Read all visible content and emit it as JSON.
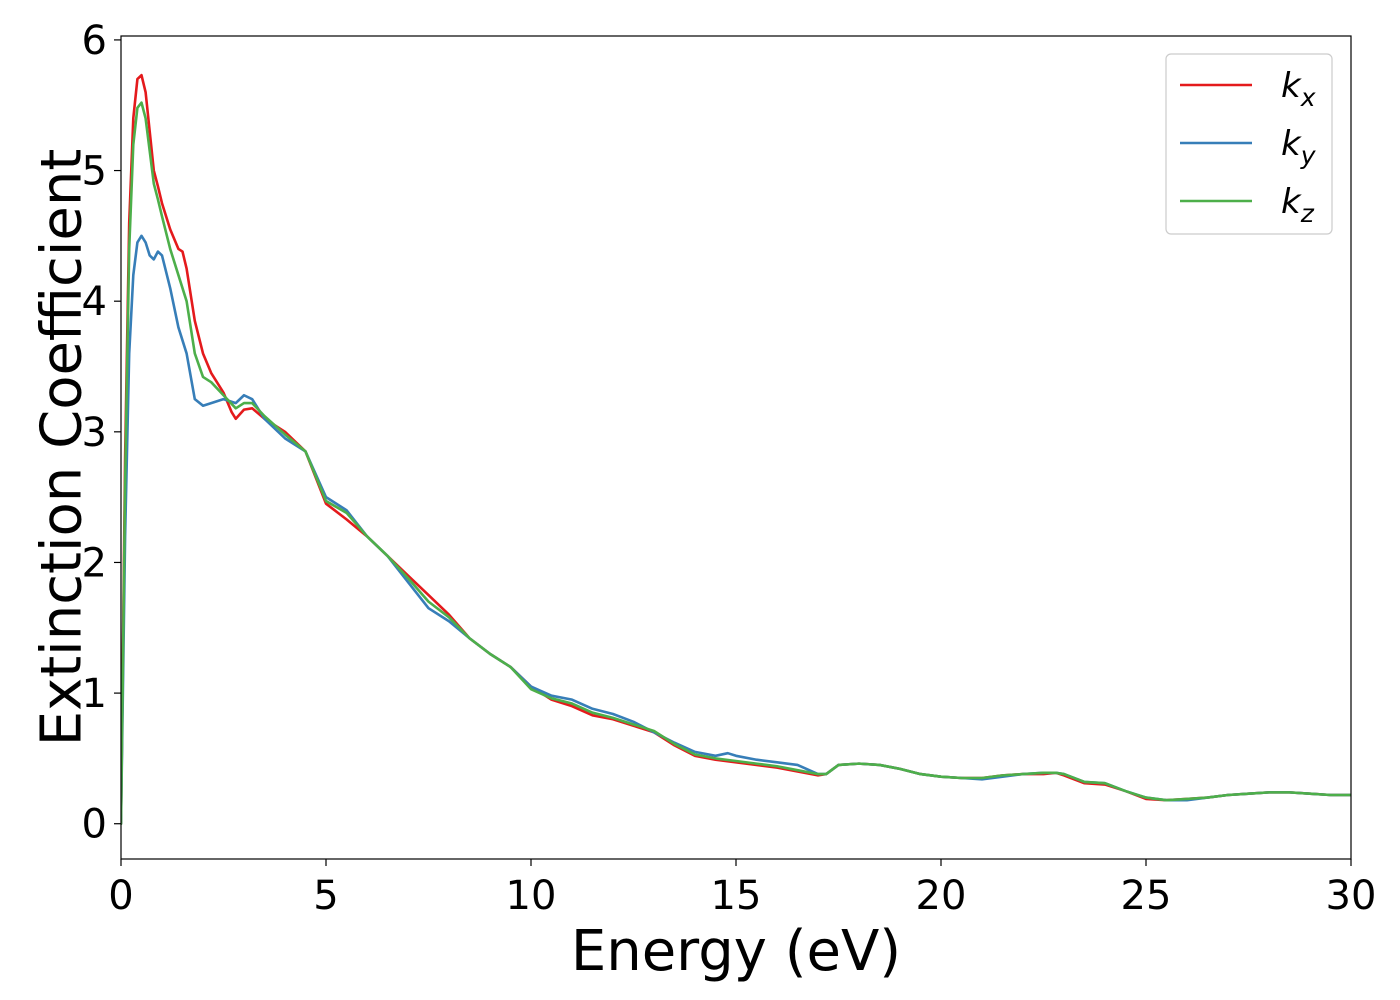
{
  "chart_data": {
    "type": "line",
    "title": "",
    "xlabel": "Energy (eV)",
    "ylabel": "Extinction Coefficient",
    "xlim": [
      0,
      30
    ],
    "ylim": [
      -0.27,
      6.03
    ],
    "xticks": [
      0,
      5,
      10,
      15,
      20,
      25,
      30
    ],
    "yticks": [
      0,
      1,
      2,
      3,
      4,
      5,
      6
    ],
    "grid": false,
    "legend_position": "top-right",
    "series": [
      {
        "name": "k",
        "subscript": "x",
        "color": "#e41a1c",
        "x": [
          0,
          0.1,
          0.2,
          0.3,
          0.4,
          0.5,
          0.6,
          0.7,
          0.8,
          0.9,
          1.0,
          1.2,
          1.4,
          1.5,
          1.6,
          1.8,
          2.0,
          2.2,
          2.5,
          2.7,
          2.8,
          3.0,
          3.2,
          3.5,
          4.0,
          4.5,
          5.0,
          5.5,
          6.0,
          6.5,
          7.0,
          7.5,
          8.0,
          8.5,
          9.0,
          9.5,
          10.0,
          10.5,
          11.0,
          11.5,
          12.0,
          12.5,
          13.0,
          13.5,
          14.0,
          14.5,
          15.0,
          15.5,
          16.0,
          16.5,
          17.0,
          17.2,
          17.5,
          18.0,
          18.5,
          19.0,
          19.5,
          20.0,
          20.5,
          21.0,
          21.5,
          22.0,
          22.5,
          22.8,
          23.0,
          23.5,
          24.0,
          24.5,
          25.0,
          25.5,
          26.0,
          26.5,
          27.0,
          27.5,
          28.0,
          28.5,
          29.0,
          29.5,
          30.0
        ],
        "y": [
          0,
          2.8,
          4.6,
          5.4,
          5.7,
          5.73,
          5.6,
          5.3,
          5.0,
          4.88,
          4.75,
          4.55,
          4.4,
          4.38,
          4.25,
          3.85,
          3.6,
          3.45,
          3.3,
          3.15,
          3.1,
          3.17,
          3.18,
          3.1,
          3.0,
          2.85,
          2.45,
          2.33,
          2.2,
          2.05,
          1.9,
          1.75,
          1.6,
          1.42,
          1.3,
          1.2,
          1.05,
          0.95,
          0.9,
          0.83,
          0.8,
          0.75,
          0.7,
          0.6,
          0.52,
          0.49,
          0.47,
          0.45,
          0.43,
          0.4,
          0.37,
          0.38,
          0.45,
          0.46,
          0.45,
          0.42,
          0.38,
          0.36,
          0.35,
          0.35,
          0.37,
          0.38,
          0.38,
          0.39,
          0.37,
          0.31,
          0.3,
          0.25,
          0.19,
          0.18,
          0.19,
          0.2,
          0.22,
          0.23,
          0.24,
          0.24,
          0.23,
          0.22,
          0.22
        ]
      },
      {
        "name": "k",
        "subscript": "y",
        "color": "#377eb8",
        "x": [
          0,
          0.1,
          0.2,
          0.3,
          0.4,
          0.5,
          0.6,
          0.7,
          0.8,
          0.9,
          1.0,
          1.2,
          1.4,
          1.6,
          1.8,
          2.0,
          2.2,
          2.5,
          2.8,
          3.0,
          3.2,
          3.5,
          4.0,
          4.5,
          5.0,
          5.5,
          6.0,
          6.5,
          7.0,
          7.5,
          8.0,
          8.5,
          9.0,
          9.5,
          10.0,
          10.5,
          11.0,
          11.5,
          12.0,
          12.5,
          13.0,
          13.5,
          14.0,
          14.5,
          14.8,
          15.0,
          15.5,
          16.0,
          16.5,
          17.0,
          17.2,
          17.5,
          18.0,
          18.5,
          19.0,
          19.5,
          20.0,
          20.5,
          21.0,
          21.5,
          22.0,
          22.5,
          22.8,
          23.0,
          23.5,
          24.0,
          24.5,
          25.0,
          25.5,
          26.0,
          26.5,
          27.0,
          27.5,
          28.0,
          28.5,
          29.0,
          29.5,
          30.0
        ],
        "y": [
          0,
          2.2,
          3.6,
          4.2,
          4.45,
          4.5,
          4.45,
          4.35,
          4.32,
          4.38,
          4.35,
          4.1,
          3.8,
          3.6,
          3.25,
          3.2,
          3.22,
          3.25,
          3.22,
          3.28,
          3.25,
          3.1,
          2.95,
          2.85,
          2.5,
          2.4,
          2.2,
          2.05,
          1.85,
          1.65,
          1.55,
          1.42,
          1.3,
          1.2,
          1.05,
          0.98,
          0.95,
          0.88,
          0.84,
          0.78,
          0.7,
          0.62,
          0.55,
          0.52,
          0.54,
          0.52,
          0.49,
          0.47,
          0.45,
          0.38,
          0.38,
          0.45,
          0.46,
          0.45,
          0.42,
          0.38,
          0.36,
          0.35,
          0.34,
          0.36,
          0.38,
          0.39,
          0.39,
          0.38,
          0.32,
          0.31,
          0.25,
          0.2,
          0.18,
          0.18,
          0.2,
          0.22,
          0.23,
          0.24,
          0.24,
          0.23,
          0.22,
          0.22
        ]
      },
      {
        "name": "k",
        "subscript": "z",
        "color": "#4daf4a",
        "x": [
          0,
          0.1,
          0.2,
          0.3,
          0.4,
          0.5,
          0.6,
          0.7,
          0.8,
          0.9,
          1.0,
          1.2,
          1.4,
          1.6,
          1.8,
          2.0,
          2.2,
          2.5,
          2.8,
          3.0,
          3.2,
          3.5,
          4.0,
          4.5,
          5.0,
          5.5,
          6.0,
          6.5,
          7.0,
          7.5,
          8.0,
          8.5,
          9.0,
          9.5,
          10.0,
          10.5,
          11.0,
          11.5,
          12.0,
          12.5,
          13.0,
          13.5,
          14.0,
          14.5,
          15.0,
          15.5,
          16.0,
          16.5,
          17.0,
          17.2,
          17.5,
          18.0,
          18.5,
          19.0,
          19.5,
          20.0,
          20.5,
          21.0,
          21.5,
          22.0,
          22.5,
          22.8,
          23.0,
          23.5,
          24.0,
          24.5,
          25.0,
          25.5,
          26.0,
          26.5,
          27.0,
          27.5,
          28.0,
          28.5,
          29.0,
          29.5,
          30.0
        ],
        "y": [
          0,
          2.6,
          4.4,
          5.2,
          5.48,
          5.52,
          5.4,
          5.15,
          4.9,
          4.78,
          4.65,
          4.4,
          4.2,
          4.0,
          3.6,
          3.42,
          3.38,
          3.28,
          3.18,
          3.22,
          3.22,
          3.12,
          2.98,
          2.85,
          2.47,
          2.38,
          2.2,
          2.05,
          1.88,
          1.7,
          1.58,
          1.42,
          1.3,
          1.2,
          1.03,
          0.96,
          0.92,
          0.85,
          0.81,
          0.76,
          0.71,
          0.61,
          0.53,
          0.5,
          0.48,
          0.46,
          0.44,
          0.41,
          0.38,
          0.38,
          0.45,
          0.46,
          0.45,
          0.42,
          0.38,
          0.36,
          0.35,
          0.35,
          0.37,
          0.38,
          0.39,
          0.39,
          0.38,
          0.32,
          0.31,
          0.25,
          0.2,
          0.18,
          0.19,
          0.2,
          0.22,
          0.23,
          0.24,
          0.24,
          0.23,
          0.22,
          0.22
        ]
      }
    ]
  }
}
